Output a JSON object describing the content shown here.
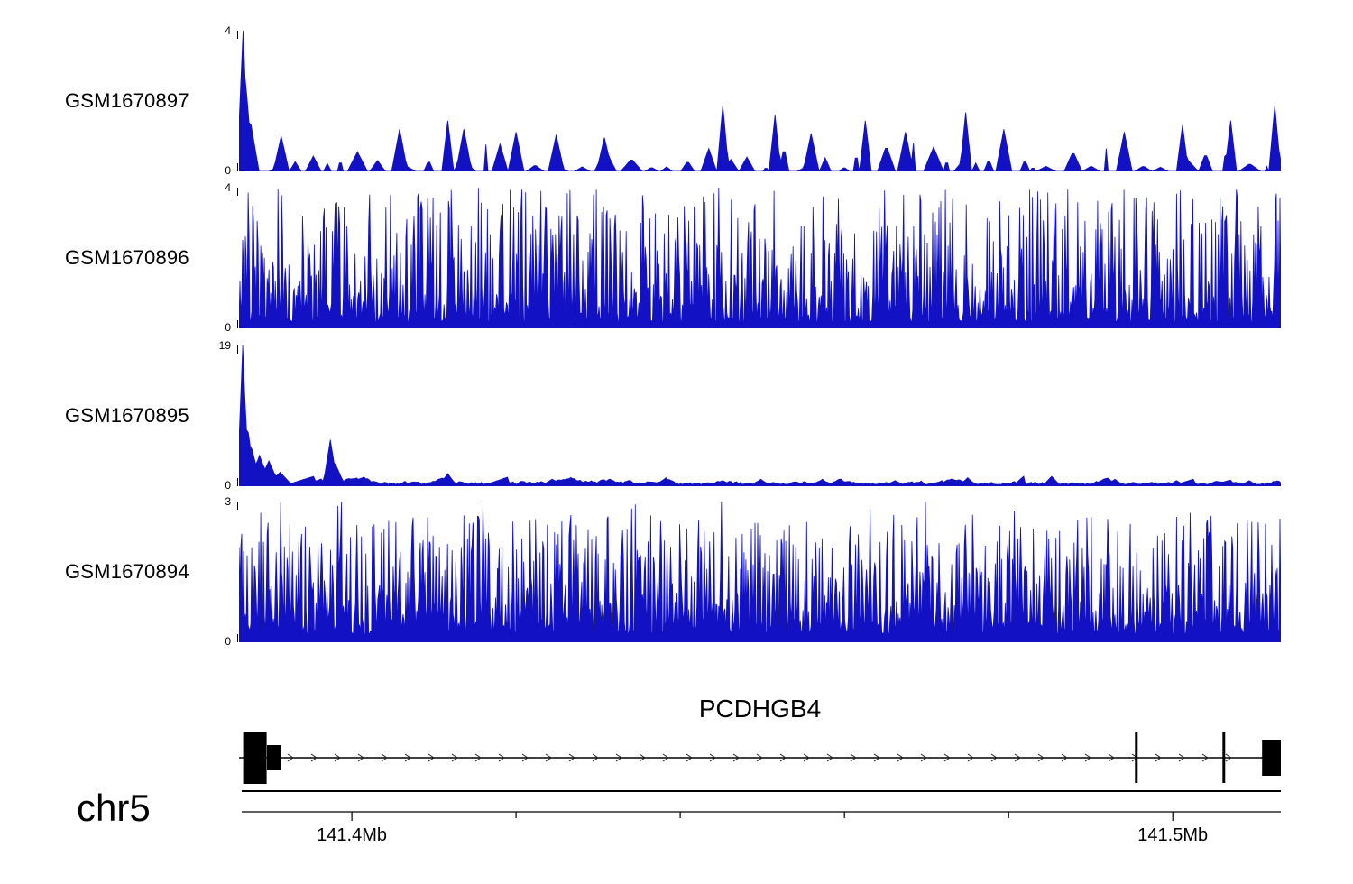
{
  "colors": {
    "signal": "#1212C4",
    "axis": "#000000",
    "arrow": "#222222"
  },
  "chart_data": {
    "type": "area",
    "title": "",
    "layout": {
      "legend": false,
      "grid": false,
      "n_tracks": 4
    },
    "tracks": [
      {
        "label": "GSM1670897",
        "ylim": [
          0,
          4
        ],
        "ymax_label": "4",
        "ymin_label": "0",
        "gen": {
          "profile": "sparse",
          "seed": 11,
          "n": 520,
          "gap": 6,
          "bumpw": 10,
          "base": 0.03,
          "amp": 0.17,
          "spikes": [
            {
              "f": 0.003,
              "h": 1.0,
              "w": 2
            },
            {
              "f": 0.007,
              "h": 0.52,
              "w": 2
            },
            {
              "f": 0.011,
              "h": 0.33,
              "w": 3
            },
            {
              "f": 0.04,
              "h": 0.25,
              "w": 3
            },
            {
              "f": 0.155,
              "h": 0.3,
              "w": 3
            },
            {
              "f": 0.2,
              "h": 0.36,
              "w": 2
            },
            {
              "f": 0.215,
              "h": 0.3,
              "w": 3
            },
            {
              "f": 0.265,
              "h": 0.28,
              "w": 3
            },
            {
              "f": 0.305,
              "h": 0.26,
              "w": 3
            },
            {
              "f": 0.35,
              "h": 0.24,
              "w": 3
            },
            {
              "f": 0.465,
              "h": 0.47,
              "w": 2
            },
            {
              "f": 0.515,
              "h": 0.4,
              "w": 2
            },
            {
              "f": 0.55,
              "h": 0.27,
              "w": 3
            },
            {
              "f": 0.602,
              "h": 0.36,
              "w": 2
            },
            {
              "f": 0.64,
              "h": 0.28,
              "w": 3
            },
            {
              "f": 0.698,
              "h": 0.42,
              "w": 2
            },
            {
              "f": 0.735,
              "h": 0.3,
              "w": 3
            },
            {
              "f": 0.85,
              "h": 0.28,
              "w": 3
            },
            {
              "f": 0.905,
              "h": 0.33,
              "w": 2
            },
            {
              "f": 0.952,
              "h": 0.36,
              "w": 2
            },
            {
              "f": 0.995,
              "h": 0.47,
              "w": 2
            }
          ]
        }
      },
      {
        "label": "GSM1670896",
        "ylim": [
          0,
          4
        ],
        "ymax_label": "4",
        "ymin_label": "0",
        "gen": {
          "profile": "dense",
          "seed": 23,
          "n": 1150,
          "base": 0.05,
          "pow": 2.6,
          "amp": 0.95,
          "tall": 0.004,
          "spikes": [
            {
              "f": 0.125,
              "h": 0.95,
              "w": 1
            },
            {
              "f": 0.175,
              "h": 0.9,
              "w": 1
            },
            {
              "f": 0.34,
              "h": 0.95,
              "w": 1
            },
            {
              "f": 0.46,
              "h": 1.0,
              "w": 1
            },
            {
              "f": 0.575,
              "h": 0.92,
              "w": 1
            },
            {
              "f": 0.62,
              "h": 0.98,
              "w": 1
            },
            {
              "f": 0.995,
              "h": 0.9,
              "w": 1
            }
          ]
        }
      },
      {
        "label": "GSM1670895",
        "ylim": [
          0,
          19
        ],
        "ymax_label": "19",
        "ymin_label": "0",
        "gen": {
          "profile": "decay",
          "seed": 37,
          "n": 560,
          "spikes": [
            {
              "f": 0.003,
              "h": 1.0,
              "w": 2
            },
            {
              "f": 0.006,
              "h": 0.6,
              "w": 2
            },
            {
              "f": 0.009,
              "h": 0.38,
              "w": 3
            },
            {
              "f": 0.013,
              "h": 0.26,
              "w": 4
            },
            {
              "f": 0.02,
              "h": 0.22,
              "w": 5
            },
            {
              "f": 0.028,
              "h": 0.18,
              "w": 5
            },
            {
              "f": 0.04,
              "h": 0.1,
              "w": 6
            },
            {
              "f": 0.088,
              "h": 0.33,
              "w": 3
            },
            {
              "f": 0.093,
              "h": 0.15,
              "w": 4
            },
            {
              "f": 0.2,
              "h": 0.09,
              "w": 4
            },
            {
              "f": 0.3,
              "h": 0.05,
              "w": 5
            },
            {
              "f": 0.41,
              "h": 0.06,
              "w": 4
            },
            {
              "f": 0.5,
              "h": 0.05,
              "w": 4
            },
            {
              "f": 0.56,
              "h": 0.05,
              "w": 4
            },
            {
              "f": 0.63,
              "h": 0.04,
              "w": 5
            },
            {
              "f": 0.7,
              "h": 0.06,
              "w": 4
            },
            {
              "f": 0.78,
              "h": 0.07,
              "w": 4
            },
            {
              "f": 0.84,
              "h": 0.05,
              "w": 4
            },
            {
              "f": 0.9,
              "h": 0.04,
              "w": 4
            },
            {
              "f": 0.97,
              "h": 0.04,
              "w": 4
            }
          ]
        }
      },
      {
        "label": "GSM1670894",
        "ylim": [
          0,
          3
        ],
        "ymax_label": "3",
        "ymin_label": "0",
        "gen": {
          "profile": "dense",
          "seed": 41,
          "n": 1150,
          "base": 0.06,
          "pow": 2.0,
          "amp": 0.85,
          "tall": 0.003,
          "spikes": [
            {
              "f": 0.04,
              "h": 1.0,
              "w": 1
            },
            {
              "f": 0.095,
              "h": 0.97,
              "w": 1
            },
            {
              "f": 0.234,
              "h": 0.98,
              "w": 1
            },
            {
              "f": 0.377,
              "h": 0.95,
              "w": 1
            },
            {
              "f": 0.463,
              "h": 1.0,
              "w": 1
            },
            {
              "f": 0.606,
              "h": 0.95,
              "w": 1
            },
            {
              "f": 0.744,
              "h": 0.93,
              "w": 1
            },
            {
              "f": 0.913,
              "h": 0.92,
              "w": 1
            }
          ]
        }
      }
    ],
    "gene": {
      "name": "PCDHGB4",
      "arrow_spacing": 26,
      "exons": [
        {
          "f": 0.004,
          "wpx": 26,
          "hpx": 58
        },
        {
          "f": 0.0268,
          "wpx": 16,
          "hpx": 28
        },
        {
          "f": 0.86,
          "wpx": 3,
          "hpx": 56
        },
        {
          "f": 0.944,
          "wpx": 3,
          "hpx": 56
        },
        {
          "f": 0.982,
          "wpx": 21,
          "hpx": 40
        }
      ]
    },
    "xaxis": {
      "chrom": "chr5",
      "ticks": [
        {
          "f": 0.106,
          "label": "141.4Mb"
        },
        {
          "f": 0.264,
          "label": ""
        },
        {
          "f": 0.422,
          "label": ""
        },
        {
          "f": 0.58,
          "label": ""
        },
        {
          "f": 0.738,
          "label": ""
        },
        {
          "f": 0.896,
          "label": "141.5Mb"
        }
      ]
    }
  }
}
